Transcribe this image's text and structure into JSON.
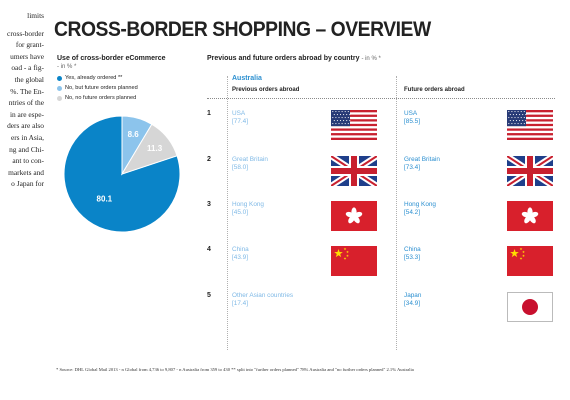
{
  "side_text": [
    "limits",
    "cross-border",
    "for grant-",
    "umers have",
    "oad - a fig-",
    "the global",
    "%. The En-",
    "ntries of the",
    "in are espe-",
    "ders are also",
    "ers in Asia,",
    "ng and Chi-",
    "ant to con-",
    "markets and",
    "o Japan for"
  ],
  "title": "CROSS-BORDER SHOPPING – OVERVIEW",
  "left_section": {
    "title": "Use of cross-border eCommerce",
    "unit": "- in % *"
  },
  "right_section": {
    "title": "Previous and future orders abroad by country",
    "unit": "- in % *"
  },
  "country": "Australia",
  "column_headers": {
    "previous": "Previous orders abroad",
    "future": "Future orders abroad"
  },
  "chart_data": {
    "type": "pie",
    "title": "Use of cross-border eCommerce",
    "unit": "- in % *",
    "slices": [
      {
        "label": "Yes, already ordered **",
        "value": 80.1,
        "color": "#0a84c8"
      },
      {
        "label": "No, but future orders planned",
        "value": 8.6,
        "color": "#8cc4ec"
      },
      {
        "label": "No, no future orders planned",
        "value": 11.3,
        "color": "#d6d6d6"
      }
    ],
    "value_labels": [
      "80.1",
      "8.6",
      "11.3"
    ]
  },
  "rows": [
    {
      "rank": "1",
      "prev_name": "USA",
      "prev_value": "[77.4]",
      "prev_flag": "usa-flag-icon",
      "fut_name": "USA",
      "fut_value": "[85.5]",
      "fut_flag": "usa-flag-icon"
    },
    {
      "rank": "2",
      "prev_name": "Great Britain",
      "prev_value": "[58.0]",
      "prev_flag": "uk-flag-icon",
      "fut_name": "Great Britain",
      "fut_value": "[73.4]",
      "fut_flag": "uk-flag-icon"
    },
    {
      "rank": "3",
      "prev_name": "Hong Kong",
      "prev_value": "[45.0]",
      "prev_flag": "hong-kong-flag-icon",
      "fut_name": "Hong Kong",
      "fut_value": "[54.2]",
      "fut_flag": "hong-kong-flag-icon"
    },
    {
      "rank": "4",
      "prev_name": "China",
      "prev_value": "[43.9]",
      "prev_flag": "china-flag-icon",
      "fut_name": "China",
      "fut_value": "[53.3]",
      "fut_flag": "china-flag-icon"
    },
    {
      "rank": "5",
      "prev_name": "Other Asian countries",
      "prev_value": "[17.4]",
      "prev_flag": "",
      "fut_name": "Japan",
      "fut_value": "[34.9]",
      "fut_flag": "japan-flag-icon"
    }
  ],
  "source": "* Source: DHL Global Mail 2013 - n Global from 4,736 to 9,807 - n Australia from 359 to 430 ** split into \"further orders planned\" 78% Australia and \"no further orders planned\" 2.1% Australia"
}
